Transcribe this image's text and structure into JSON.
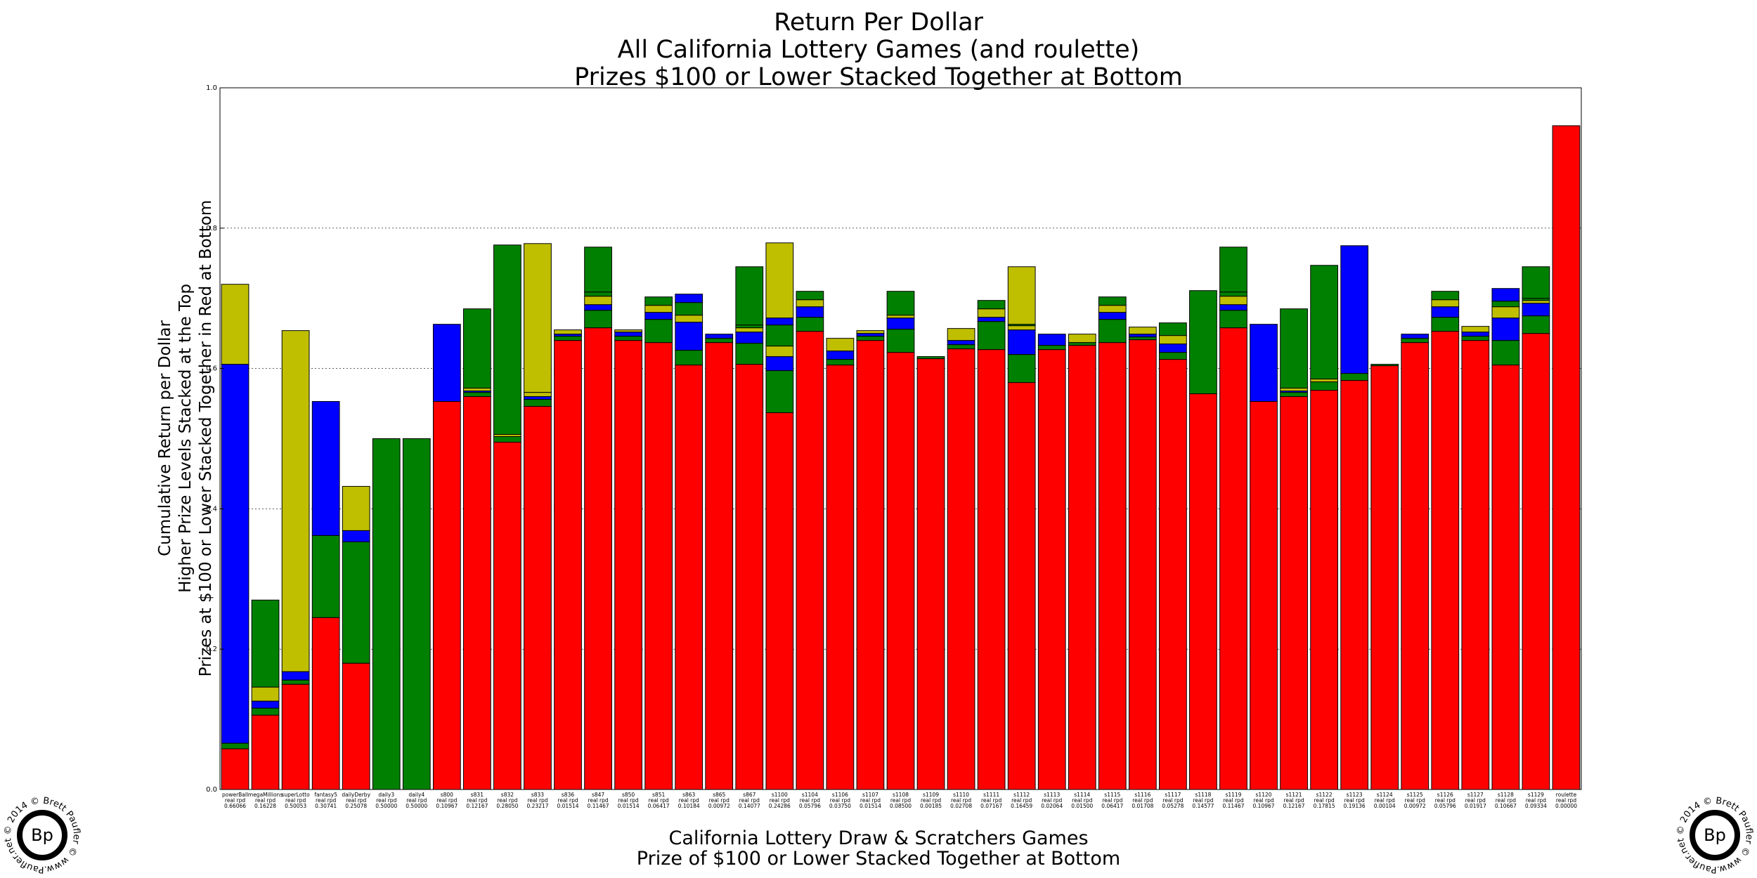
{
  "colors": {
    "red": "#ff0000",
    "green": "#008000",
    "blue": "#0000ff",
    "olive": "#bfbf00",
    "edge": "#000000"
  },
  "watermark": {
    "text": "© 2014 © Brett Paufler © www.Paufler.net",
    "mark": "Bp"
  },
  "chart_data": {
    "type": "bar",
    "stacked": true,
    "title": [
      "Return Per Dollar",
      "All California Lottery Games (and roulette)",
      "Prizes $100 or Lower Stacked Together at Bottom"
    ],
    "xlabel": [
      "California Lottery Draw & Scratchers Games",
      "Prize of $100 or Lower Stacked Together at Bottom"
    ],
    "ylabel": [
      "Cumulative Return per Dollar",
      "Higher Prize Levels Stacked at the Top",
      "Prizes at $100 or Lower Stacked Together in Red at Bottom"
    ],
    "ylim": [
      0,
      1
    ],
    "yticks": [
      "0.0",
      "0.2",
      "0.4",
      "0.6",
      "0.8",
      "1.0"
    ],
    "grid": true,
    "categories": [
      "powerBall",
      "megaMillions",
      "superLotto",
      "fantasy5",
      "dailyDerby",
      "daily3",
      "daily4",
      "s800",
      "s831",
      "s832",
      "s833",
      "s836",
      "s847",
      "s850",
      "s851",
      "s863",
      "s865",
      "s867",
      "s1100",
      "s1104",
      "s1106",
      "s1107",
      "s1108",
      "s1109",
      "s1110",
      "s1111",
      "s1112",
      "s1113",
      "s1114",
      "s1115",
      "s1116",
      "s1117",
      "s1118",
      "s1119",
      "s1120",
      "s1121",
      "s1122",
      "s1123",
      "s1124",
      "s1125",
      "s1126",
      "s1127",
      "s1128",
      "s1129",
      "roulette"
    ],
    "category_sub": "real rpd",
    "category_rpd": [
      "0.66066",
      "0.16228",
      "0.50053",
      "0.30741",
      "0.25078",
      "0.50000",
      "0.50000",
      "0.10967",
      "0.12167",
      "0.28050",
      "0.23217",
      "0.01514",
      "0.11467",
      "0.01514",
      "0.06417",
      "0.10184",
      "0.00972",
      "0.14077",
      "0.24286",
      "0.05796",
      "0.03750",
      "0.01514",
      "0.08500",
      "0.00185",
      "0.02708",
      "0.07167",
      "0.16459",
      "0.02064",
      "0.01500",
      "0.06417",
      "0.01708",
      "0.05278",
      "0.14577",
      "0.11467",
      "0.10967",
      "0.12167",
      "0.17815",
      "0.19136",
      "0.00104",
      "0.00972",
      "0.05796",
      "0.01917",
      "0.10667",
      "0.09334",
      "0.00000"
    ],
    "segments": [
      [
        [
          0.058,
          "red"
        ],
        [
          0.008,
          "green"
        ],
        [
          0.54,
          "blue"
        ],
        [
          0.114,
          "olive"
        ]
      ],
      [
        [
          0.106,
          "red"
        ],
        [
          0.01,
          "green"
        ],
        [
          0.01,
          "blue"
        ],
        [
          0.02,
          "olive"
        ],
        [
          0.124,
          "green"
        ]
      ],
      [
        [
          0.15,
          "red"
        ],
        [
          0.006,
          "green"
        ],
        [
          0.012,
          "blue"
        ],
        [
          0.486,
          "olive"
        ]
      ],
      [
        [
          0.245,
          "red"
        ],
        [
          0.117,
          "green"
        ],
        [
          0.191,
          "blue"
        ]
      ],
      [
        [
          0.18,
          "red"
        ],
        [
          0.173,
          "green"
        ],
        [
          0.016,
          "blue"
        ],
        [
          0.063,
          "olive"
        ]
      ],
      [
        [
          0.5,
          "green"
        ]
      ],
      [
        [
          0.5,
          "green"
        ]
      ],
      [
        [
          0.553,
          "red"
        ],
        [
          0.11,
          "blue"
        ]
      ],
      [
        [
          0.56,
          "red"
        ],
        [
          0.006,
          "green"
        ],
        [
          0.002,
          "blue"
        ],
        [
          0.004,
          "olive"
        ],
        [
          0.113,
          "green"
        ]
      ],
      [
        [
          0.495,
          "red"
        ],
        [
          0.008,
          "green"
        ],
        [
          0.003,
          "olive"
        ],
        [
          0.27,
          "green"
        ]
      ],
      [
        [
          0.546,
          "red"
        ],
        [
          0.01,
          "green"
        ],
        [
          0.004,
          "blue"
        ],
        [
          0.006,
          "olive"
        ],
        [
          0.212,
          "olive"
        ]
      ],
      [
        [
          0.64,
          "red"
        ],
        [
          0.006,
          "green"
        ],
        [
          0.003,
          "blue"
        ],
        [
          0.006,
          "olive"
        ]
      ],
      [
        [
          0.658,
          "red"
        ],
        [
          0.025,
          "green"
        ],
        [
          0.008,
          "blue"
        ],
        [
          0.012,
          "olive"
        ],
        [
          0.006,
          "green"
        ],
        [
          0.064,
          "green"
        ]
      ],
      [
        [
          0.64,
          "red"
        ],
        [
          0.006,
          "green"
        ],
        [
          0.006,
          "blue"
        ],
        [
          0.003,
          "olive"
        ]
      ],
      [
        [
          0.637,
          "red"
        ],
        [
          0.033,
          "green"
        ],
        [
          0.01,
          "blue"
        ],
        [
          0.01,
          "olive"
        ],
        [
          0.012,
          "green"
        ]
      ],
      [
        [
          0.605,
          "red"
        ],
        [
          0.021,
          "green"
        ],
        [
          0.04,
          "blue"
        ],
        [
          0.01,
          "olive"
        ],
        [
          0.018,
          "green"
        ],
        [
          0.012,
          "blue"
        ]
      ],
      [
        [
          0.637,
          "red"
        ],
        [
          0.006,
          "green"
        ],
        [
          0.006,
          "blue"
        ],
        [
          0.0,
          "olive"
        ]
      ],
      [
        [
          0.606,
          "red"
        ],
        [
          0.03,
          "green"
        ],
        [
          0.016,
          "blue"
        ],
        [
          0.006,
          "olive"
        ],
        [
          0.004,
          "green"
        ],
        [
          0.083,
          "green"
        ]
      ],
      [
        [
          0.537,
          "red"
        ],
        [
          0.06,
          "green"
        ],
        [
          0.02,
          "blue"
        ],
        [
          0.015,
          "olive"
        ],
        [
          0.03,
          "green"
        ],
        [
          0.01,
          "blue"
        ],
        [
          0.107,
          "olive"
        ]
      ],
      [
        [
          0.653,
          "red"
        ],
        [
          0.02,
          "green"
        ],
        [
          0.015,
          "blue"
        ],
        [
          0.01,
          "olive"
        ],
        [
          0.012,
          "green"
        ]
      ],
      [
        [
          0.605,
          "red"
        ],
        [
          0.008,
          "green"
        ],
        [
          0.012,
          "blue"
        ],
        [
          0.018,
          "olive"
        ]
      ],
      [
        [
          0.64,
          "red"
        ],
        [
          0.006,
          "green"
        ],
        [
          0.004,
          "blue"
        ],
        [
          0.004,
          "olive"
        ]
      ],
      [
        [
          0.623,
          "red"
        ],
        [
          0.033,
          "green"
        ],
        [
          0.016,
          "blue"
        ],
        [
          0.004,
          "olive"
        ],
        [
          0.034,
          "green"
        ]
      ],
      [
        [
          0.614,
          "red"
        ],
        [
          0.003,
          "green"
        ]
      ],
      [
        [
          0.628,
          "red"
        ],
        [
          0.006,
          "green"
        ],
        [
          0.006,
          "blue"
        ],
        [
          0.017,
          "olive"
        ]
      ],
      [
        [
          0.627,
          "red"
        ],
        [
          0.04,
          "green"
        ],
        [
          0.006,
          "blue"
        ],
        [
          0.012,
          "olive"
        ],
        [
          0.012,
          "green"
        ]
      ],
      [
        [
          0.58,
          "red"
        ],
        [
          0.04,
          "green"
        ],
        [
          0.035,
          "blue"
        ],
        [
          0.006,
          "olive"
        ],
        [
          0.002,
          "green"
        ],
        [
          0.082,
          "olive"
        ]
      ],
      [
        [
          0.627,
          "red"
        ],
        [
          0.006,
          "green"
        ],
        [
          0.016,
          "blue"
        ]
      ],
      [
        [
          0.633,
          "red"
        ],
        [
          0.004,
          "green"
        ],
        [
          0.0,
          "blue"
        ],
        [
          0.012,
          "olive"
        ]
      ],
      [
        [
          0.637,
          "red"
        ],
        [
          0.033,
          "green"
        ],
        [
          0.01,
          "blue"
        ],
        [
          0.01,
          "olive"
        ],
        [
          0.012,
          "green"
        ]
      ],
      [
        [
          0.641,
          "red"
        ],
        [
          0.004,
          "green"
        ],
        [
          0.004,
          "blue"
        ],
        [
          0.01,
          "olive"
        ]
      ],
      [
        [
          0.613,
          "red"
        ],
        [
          0.01,
          "green"
        ],
        [
          0.012,
          "blue"
        ],
        [
          0.012,
          "olive"
        ],
        [
          0.018,
          "green"
        ]
      ],
      [
        [
          0.564,
          "red"
        ],
        [
          0.147,
          "green"
        ]
      ],
      [
        [
          0.658,
          "red"
        ],
        [
          0.025,
          "green"
        ],
        [
          0.008,
          "blue"
        ],
        [
          0.012,
          "olive"
        ],
        [
          0.006,
          "green"
        ],
        [
          0.064,
          "green"
        ]
      ],
      [
        [
          0.553,
          "red"
        ],
        [
          0.11,
          "blue"
        ]
      ],
      [
        [
          0.56,
          "red"
        ],
        [
          0.006,
          "green"
        ],
        [
          0.002,
          "blue"
        ],
        [
          0.004,
          "olive"
        ],
        [
          0.113,
          "green"
        ]
      ],
      [
        [
          0.569,
          "red"
        ],
        [
          0.012,
          "green"
        ],
        [
          0.004,
          "olive"
        ],
        [
          0.162,
          "green"
        ]
      ],
      [
        [
          0.583,
          "red"
        ],
        [
          0.01,
          "green"
        ],
        [
          0.182,
          "blue"
        ]
      ],
      [
        [
          0.604,
          "red"
        ],
        [
          0.002,
          "green"
        ]
      ],
      [
        [
          0.637,
          "red"
        ],
        [
          0.006,
          "green"
        ],
        [
          0.006,
          "blue"
        ]
      ],
      [
        [
          0.653,
          "red"
        ],
        [
          0.02,
          "green"
        ],
        [
          0.015,
          "blue"
        ],
        [
          0.01,
          "olive"
        ],
        [
          0.012,
          "green"
        ]
      ],
      [
        [
          0.64,
          "red"
        ],
        [
          0.006,
          "green"
        ],
        [
          0.006,
          "blue"
        ],
        [
          0.008,
          "olive"
        ]
      ],
      [
        [
          0.605,
          "red"
        ],
        [
          0.035,
          "green"
        ],
        [
          0.032,
          "blue"
        ],
        [
          0.016,
          "olive"
        ],
        [
          0.008,
          "green"
        ],
        [
          0.018,
          "blue"
        ]
      ],
      [
        [
          0.65,
          "red"
        ],
        [
          0.025,
          "green"
        ],
        [
          0.018,
          "blue"
        ],
        [
          0.004,
          "olive"
        ],
        [
          0.003,
          "green"
        ],
        [
          0.045,
          "green"
        ]
      ],
      [
        [
          0.946,
          "red"
        ]
      ]
    ]
  }
}
